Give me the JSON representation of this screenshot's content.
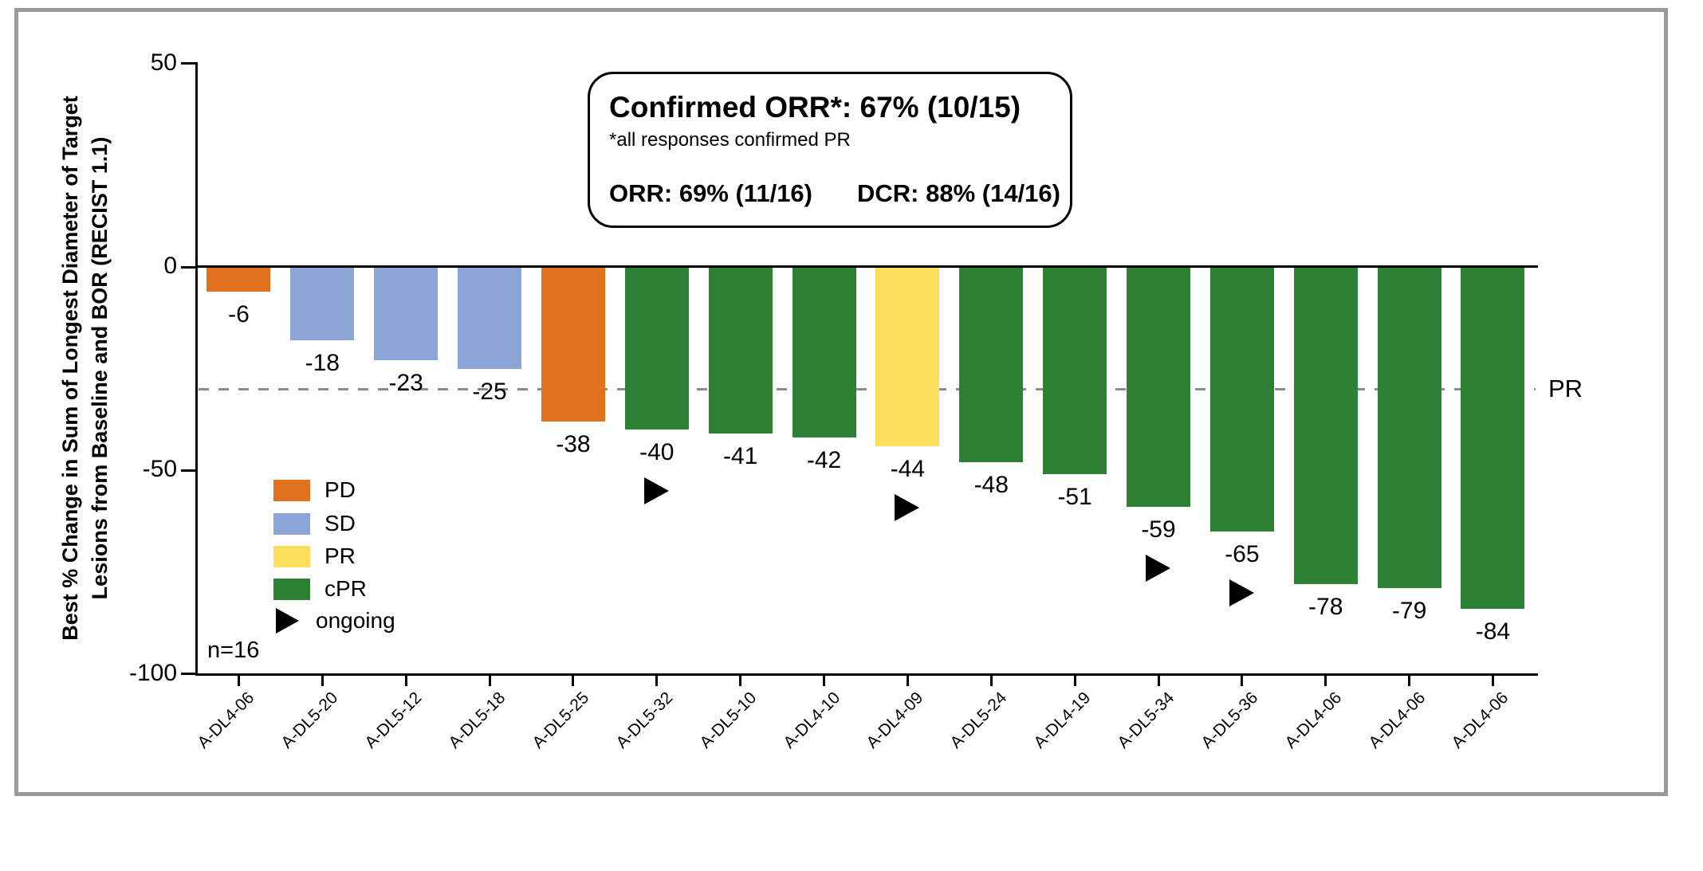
{
  "figure": {
    "n_label": "n=16",
    "pr_line_label": "PR"
  },
  "annotation_box": {
    "title": "Confirmed ORR*: 67% (10/15)",
    "footnote": "*all responses confirmed PR",
    "orr_stat": "ORR: 69% (11/16)",
    "dcr_stat": "DCR: 88% (14/16)"
  },
  "legend": {
    "items": [
      {
        "label": "PD",
        "swatch": "square",
        "color": "#E1711F"
      },
      {
        "label": "SD",
        "swatch": "square",
        "color": "#8AA5D6"
      },
      {
        "label": "PR",
        "swatch": "square",
        "color": "#FBDF5B"
      },
      {
        "label": "cPR",
        "swatch": "square",
        "color": "#2E8134"
      },
      {
        "label": "ongoing",
        "swatch": "triangle",
        "color": "#000000"
      }
    ]
  },
  "chart_data": {
    "type": "bar",
    "title": "",
    "ylabel_lines": [
      "Best % Change in Sum of Longest Diameter of Target",
      "Lesions from Baseline and BOR (RECIST 1.1)"
    ],
    "ylim": [
      -100,
      50
    ],
    "yticks": [
      50,
      0,
      -50,
      -100
    ],
    "grid": false,
    "reference_line": {
      "value": -30,
      "label": "PR",
      "style": "dashed"
    },
    "bor_colors": {
      "PD": "#E1711F",
      "SD": "#8AA5D6",
      "PR": "#FBDF5B",
      "cPR": "#2E8134"
    },
    "categories": [
      "A-DL4-06",
      "A-DL5-20",
      "A-DL5-12",
      "A-DL5-18",
      "A-DL5-25",
      "A-DL5-32",
      "A-DL5-10",
      "A-DL4-10",
      "A-DL4-09",
      "A-DL5-24",
      "A-DL4-19",
      "A-DL5-34",
      "A-DL5-36",
      "A-DL4-06",
      "A-DL4-06",
      "A-DL4-06"
    ],
    "values": [
      -6,
      -18,
      -23,
      -25,
      -38,
      -40,
      -41,
      -42,
      -44,
      -48,
      -51,
      -59,
      -65,
      -78,
      -79,
      -84
    ],
    "bars": [
      {
        "id": "A-DL4-06",
        "value": -6,
        "bor": "PD",
        "ongoing": false
      },
      {
        "id": "A-DL5-20",
        "value": -18,
        "bor": "SD",
        "ongoing": false
      },
      {
        "id": "A-DL5-12",
        "value": -23,
        "bor": "SD",
        "ongoing": false
      },
      {
        "id": "A-DL5-18",
        "value": -25,
        "bor": "SD",
        "ongoing": false
      },
      {
        "id": "A-DL5-25",
        "value": -38,
        "bor": "PD",
        "ongoing": false
      },
      {
        "id": "A-DL5-32",
        "value": -40,
        "bor": "cPR",
        "ongoing": true
      },
      {
        "id": "A-DL5-10",
        "value": -41,
        "bor": "cPR",
        "ongoing": false
      },
      {
        "id": "A-DL4-10",
        "value": -42,
        "bor": "cPR",
        "ongoing": false
      },
      {
        "id": "A-DL4-09",
        "value": -44,
        "bor": "PR",
        "ongoing": true
      },
      {
        "id": "A-DL5-24",
        "value": -48,
        "bor": "cPR",
        "ongoing": false
      },
      {
        "id": "A-DL4-19",
        "value": -51,
        "bor": "cPR",
        "ongoing": false
      },
      {
        "id": "A-DL5-34",
        "value": -59,
        "bor": "cPR",
        "ongoing": true
      },
      {
        "id": "A-DL5-36",
        "value": -65,
        "bor": "cPR",
        "ongoing": true
      },
      {
        "id": "A-DL4-06",
        "value": -78,
        "bor": "cPR",
        "ongoing": false
      },
      {
        "id": "A-DL4-06",
        "value": -79,
        "bor": "cPR",
        "ongoing": false
      },
      {
        "id": "A-DL4-06",
        "value": -84,
        "bor": "cPR",
        "ongoing": false
      }
    ]
  }
}
